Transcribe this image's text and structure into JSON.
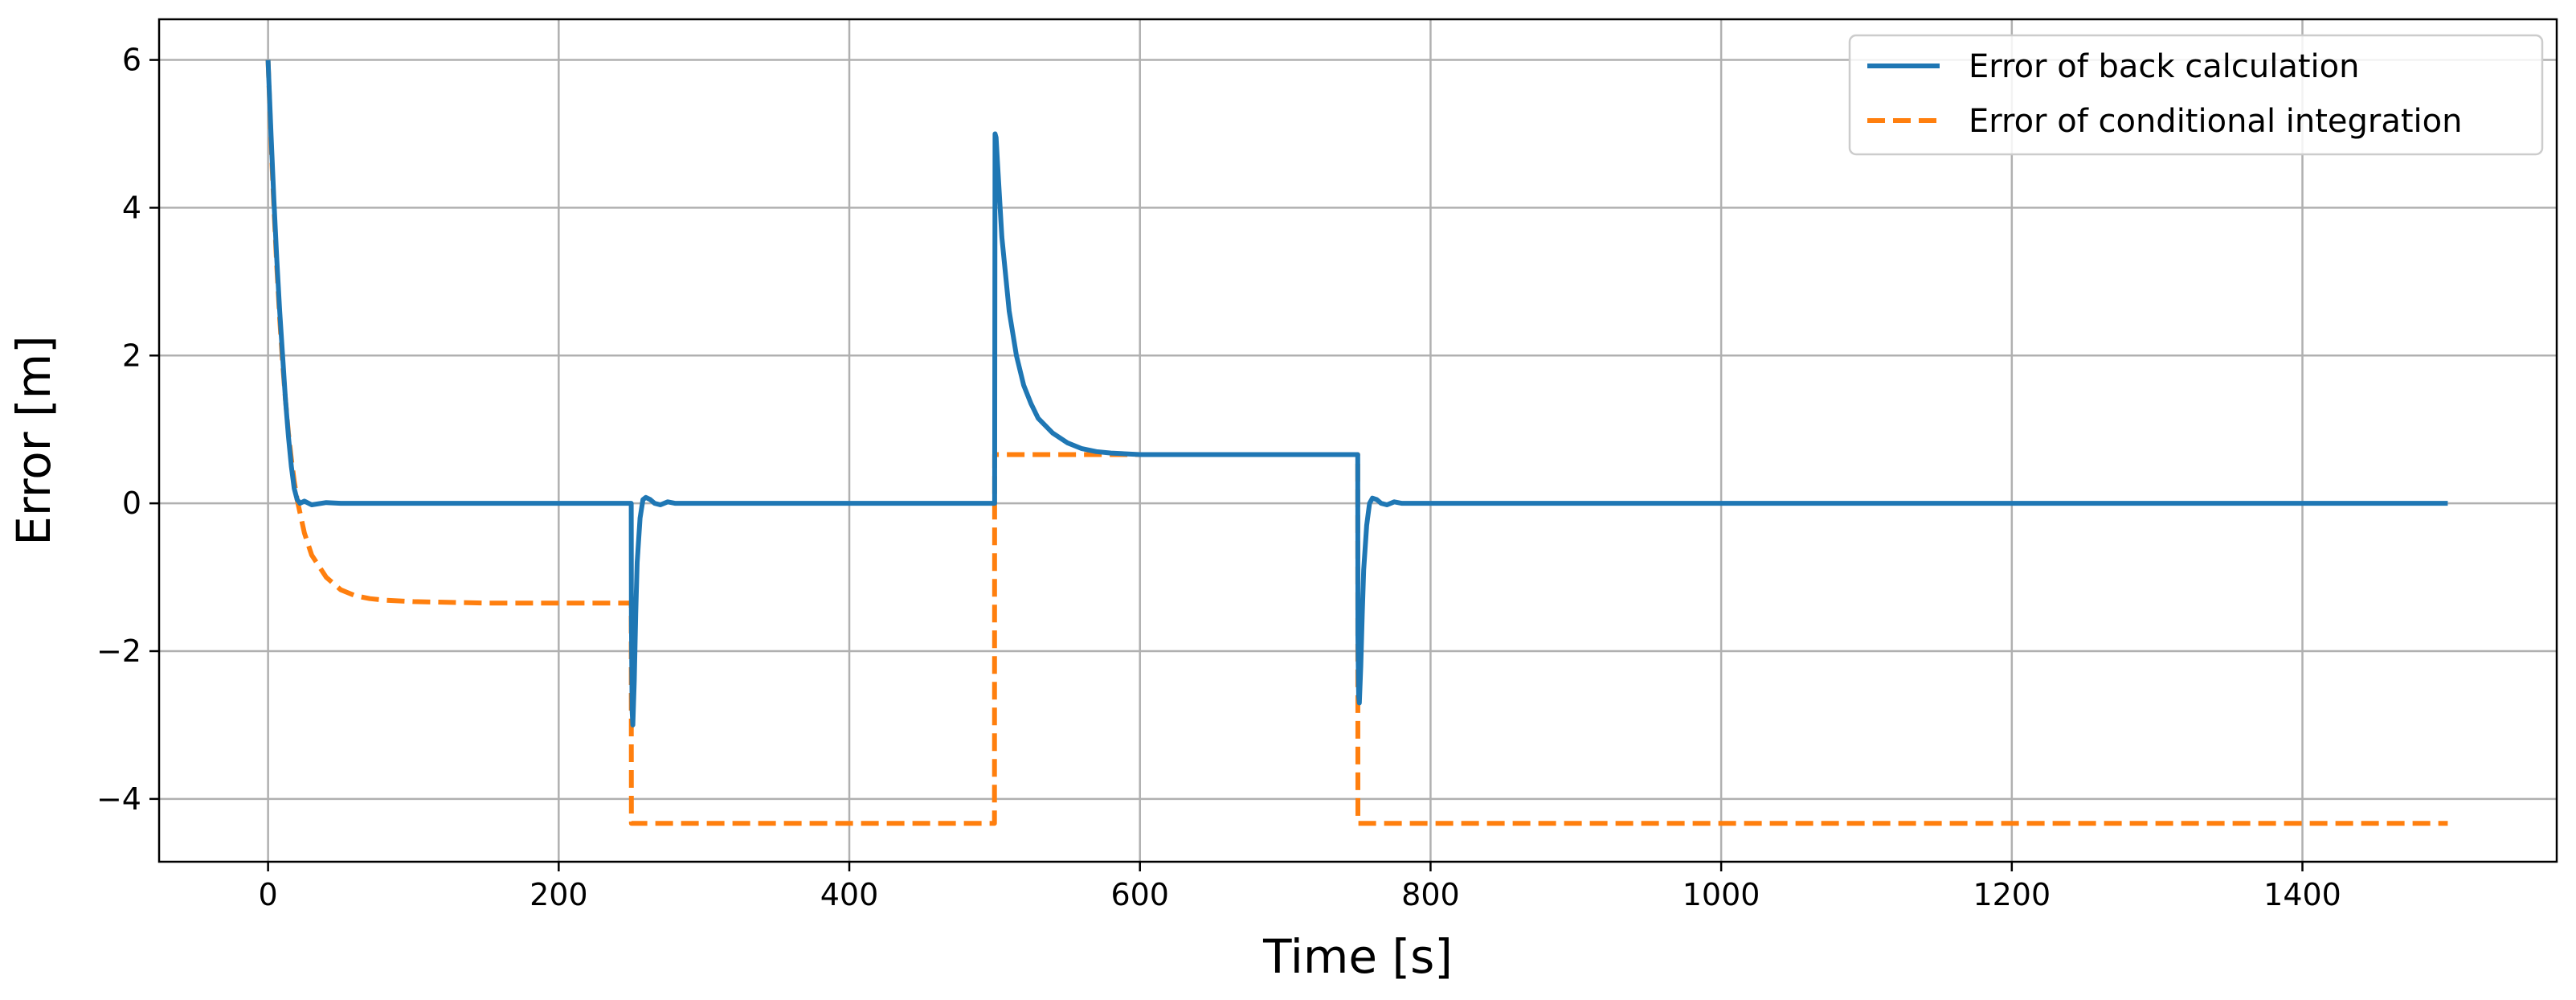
{
  "chart_data": {
    "type": "line",
    "xlabel": "Time [s]",
    "ylabel": "Error [m]",
    "xlim": [
      -75,
      1575
    ],
    "ylim": [
      -4.85,
      6.55
    ],
    "xticks": [
      0,
      200,
      400,
      600,
      800,
      1000,
      1200,
      1400
    ],
    "yticks": [
      -4,
      -2,
      0,
      2,
      4,
      6
    ],
    "xtick_labels": [
      "0",
      "200",
      "400",
      "600",
      "800",
      "1000",
      "1200",
      "1400"
    ],
    "ytick_labels": [
      "−4",
      "−2",
      "0",
      "2",
      "4",
      "6"
    ],
    "grid": true,
    "legend_position": "top-right",
    "series": [
      {
        "name": "Error of back calculation",
        "color": "#1f77b4",
        "style": "solid",
        "x": [
          0,
          2,
          4,
          6,
          8,
          10,
          12,
          14,
          16,
          18,
          20,
          22,
          25,
          30,
          40,
          50,
          100,
          200,
          249.9,
          250,
          250.5,
          251,
          252,
          253,
          254,
          256,
          258,
          260,
          263,
          266,
          270,
          275,
          280,
          290,
          300,
          400,
          499.9,
          500,
          500.3,
          501,
          502,
          505,
          510,
          515,
          520,
          525,
          530,
          540,
          550,
          560,
          570,
          580,
          600,
          650,
          700,
          749.9,
          750,
          750.5,
          751,
          752,
          753,
          754,
          756,
          758,
          760,
          763,
          766,
          770,
          775,
          780,
          790,
          800,
          1000,
          1200,
          1500
        ],
        "y": [
          6,
          5.0,
          4.1,
          3.3,
          2.6,
          2.0,
          1.4,
          0.9,
          0.5,
          0.2,
          0.05,
          0.0,
          0.03,
          -0.02,
          0.01,
          0,
          0,
          0,
          0,
          -1.5,
          -2.8,
          -3.0,
          -2.4,
          -1.5,
          -0.8,
          -0.2,
          0.05,
          0.08,
          0.05,
          0.0,
          -0.02,
          0.02,
          0,
          0,
          0,
          0,
          0,
          0.0,
          5.0,
          4.95,
          4.6,
          3.6,
          2.6,
          2.0,
          1.6,
          1.35,
          1.15,
          0.95,
          0.82,
          0.74,
          0.7,
          0.68,
          0.66,
          0.66,
          0.66,
          0.66,
          -1.8,
          -2.6,
          -2.7,
          -2.2,
          -1.5,
          -0.9,
          -0.3,
          0.0,
          0.07,
          0.05,
          0.0,
          -0.02,
          0.02,
          0,
          0,
          0,
          0,
          0,
          0
        ]
      },
      {
        "name": "Error of conditional integration",
        "color": "#ff7f0e",
        "style": "dashed",
        "x": [
          0,
          2,
          4,
          6,
          8,
          10,
          12,
          14,
          16,
          18,
          20,
          25,
          30,
          40,
          50,
          60,
          70,
          80,
          100,
          150,
          200,
          249.9,
          250,
          499.9,
          500,
          749.9,
          750,
          1500
        ],
        "y": [
          6,
          4.9,
          4.0,
          3.2,
          2.5,
          1.9,
          1.4,
          0.95,
          0.6,
          0.3,
          0.05,
          -0.4,
          -0.7,
          -1.0,
          -1.17,
          -1.25,
          -1.29,
          -1.31,
          -1.33,
          -1.35,
          -1.35,
          -1.35,
          -4.33,
          -4.33,
          0.66,
          0.66,
          -4.33,
          -4.33
        ]
      }
    ]
  }
}
